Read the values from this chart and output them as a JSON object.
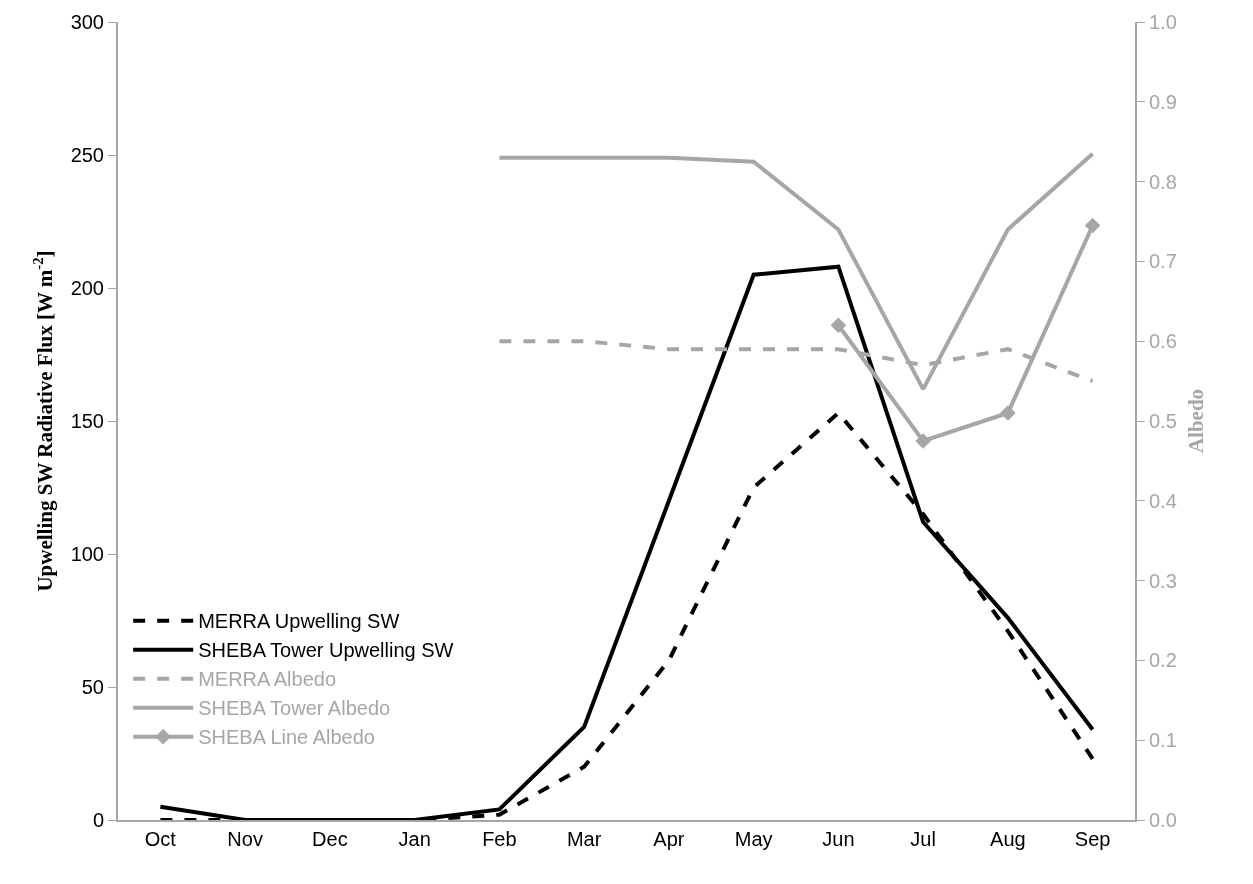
{
  "chart_data": {
    "type": "line",
    "ylabel": "Upwelling SW Radiative Flux [W m$^{-2}$]",
    "y2label": "Albedo",
    "categories": [
      "Oct",
      "Nov",
      "Dec",
      "Jan",
      "Feb",
      "Mar",
      "Apr",
      "May",
      "Jun",
      "Jul",
      "Aug",
      "Sep"
    ],
    "ylim": [
      0,
      300
    ],
    "yticks": [
      0,
      50,
      100,
      150,
      200,
      250,
      300
    ],
    "y2lim": [
      0,
      1
    ],
    "y2ticks": [
      {
        "value": 0,
        "label": "0.0"
      },
      0.1,
      0.2,
      0.3,
      0.4,
      0.5,
      0.6,
      0.7,
      0.8,
      0.9,
      {
        "value": 1,
        "label": "1.0"
      }
    ],
    "grid": false,
    "legend": "bottom left",
    "marker": "none",
    "series": [
      {
        "name": "MERRA Upwelling SW",
        "color": "#000000",
        "line_style": "dashed",
        "values": [
          0,
          0,
          0,
          0,
          2,
          20,
          60,
          125,
          153,
          115,
          71,
          23
        ]
      },
      {
        "name": "SHEBA Tower Upwelling SW",
        "color": "#000000",
        "line_style": "solid",
        "values": [
          5,
          0,
          0,
          0,
          4,
          35,
          120,
          205,
          208,
          112,
          76,
          34
        ]
      },
      {
        "name": "MERRA Albedo",
        "color": "#a6a6a6",
        "line_style": "dashed",
        "axis": "y2",
        "values": [
          null,
          null,
          null,
          null,
          0.6,
          0.6,
          0.59,
          0.59,
          0.59,
          0.57,
          0.59,
          0.55
        ]
      },
      {
        "name": "SHEBA Tower Albedo",
        "color": "#a6a6a6",
        "line_style": "solid",
        "axis": "y2",
        "values": [
          null,
          null,
          null,
          null,
          0.83,
          0.83,
          0.83,
          0.825,
          0.74,
          0.54,
          0.74,
          0.835
        ]
      },
      {
        "name": "SHEBA Line Albedo",
        "color": "#a6a6a6",
        "line_style": "solid",
        "marker": "diamond",
        "axis": "y2",
        "values": [
          null,
          null,
          null,
          null,
          null,
          null,
          null,
          null,
          0.62,
          0.475,
          0.51,
          0.745
        ]
      }
    ]
  }
}
